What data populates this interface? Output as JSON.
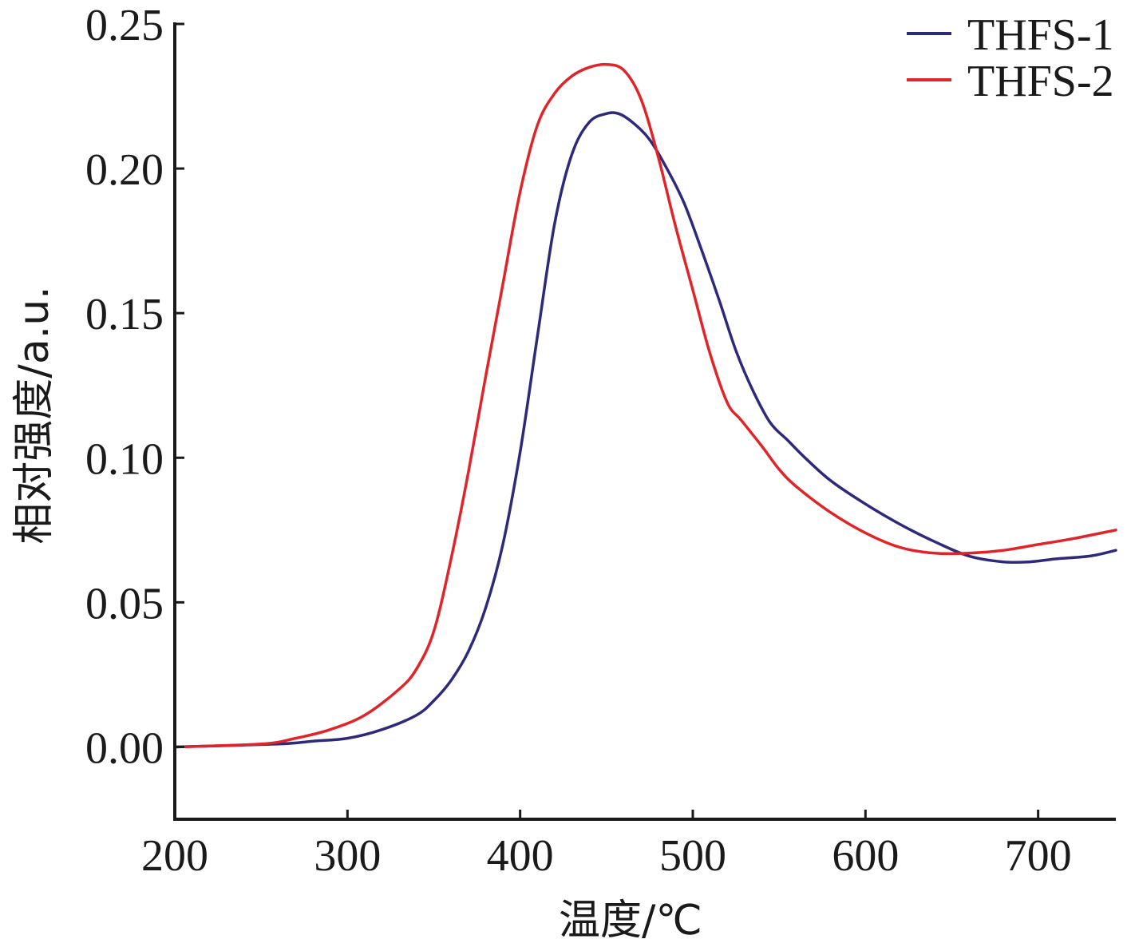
{
  "chart_data": {
    "type": "line",
    "xlabel": "温度/℃",
    "ylabel": "相对强度/a.u.",
    "xlim": [
      200,
      745
    ],
    "ylim": [
      -0.025,
      0.25
    ],
    "x_ticks": [
      200,
      300,
      400,
      500,
      600,
      700
    ],
    "x_tick_labels": [
      "200",
      "300",
      "400",
      "500",
      "600",
      "700"
    ],
    "y_ticks": [
      0.0,
      0.05,
      0.1,
      0.15,
      0.2,
      0.25
    ],
    "y_tick_labels": [
      "0.00",
      "0.05",
      "0.10",
      "0.15",
      "0.20",
      "0.25"
    ],
    "grid": false,
    "legend_position": "top-right",
    "series": [
      {
        "name": "THFS-1",
        "color": "#2e2a7a",
        "x": [
          200,
          260,
          280,
          300,
          320,
          340,
          350,
          360,
          370,
          380,
          390,
          400,
          410,
          420,
          430,
          440,
          450,
          457,
          465,
          475,
          485,
          495,
          505,
          515,
          525,
          535,
          545,
          555,
          565,
          580,
          600,
          620,
          640,
          660,
          680,
          695,
          710,
          730,
          745
        ],
        "y": [
          0.0,
          0.001,
          0.002,
          0.003,
          0.006,
          0.011,
          0.016,
          0.023,
          0.033,
          0.048,
          0.07,
          0.102,
          0.142,
          0.181,
          0.205,
          0.216,
          0.219,
          0.219,
          0.216,
          0.21,
          0.2,
          0.188,
          0.172,
          0.155,
          0.137,
          0.123,
          0.112,
          0.106,
          0.1,
          0.092,
          0.084,
          0.077,
          0.071,
          0.066,
          0.064,
          0.064,
          0.065,
          0.066,
          0.068
        ]
      },
      {
        "name": "THFS-2",
        "color": "#e0252a",
        "x": [
          200,
          250,
          270,
          290,
          310,
          330,
          340,
          350,
          360,
          370,
          380,
          390,
          400,
          410,
          420,
          430,
          440,
          450,
          460,
          470,
          480,
          490,
          500,
          510,
          520,
          528,
          540,
          550,
          560,
          580,
          600,
          620,
          640,
          660,
          680,
          700,
          720,
          745
        ],
        "y": [
          0.0,
          0.001,
          0.003,
          0.006,
          0.011,
          0.02,
          0.027,
          0.04,
          0.065,
          0.095,
          0.128,
          0.16,
          0.192,
          0.215,
          0.226,
          0.232,
          0.235,
          0.236,
          0.234,
          0.224,
          0.204,
          0.18,
          0.158,
          0.136,
          0.119,
          0.113,
          0.104,
          0.096,
          0.09,
          0.081,
          0.074,
          0.069,
          0.067,
          0.067,
          0.068,
          0.07,
          0.072,
          0.075
        ]
      }
    ]
  }
}
